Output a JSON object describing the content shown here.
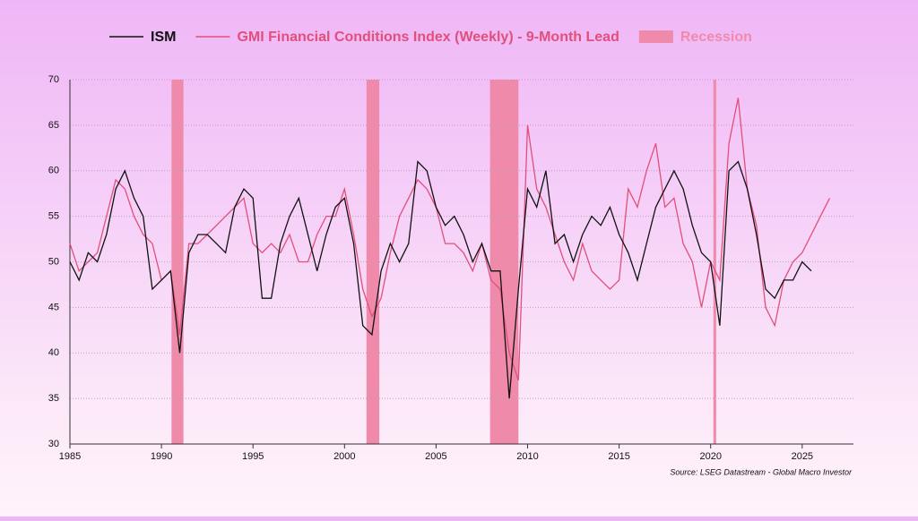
{
  "chart_data": {
    "type": "line",
    "legend_position": "top",
    "x": [
      1985,
      1985.5,
      1986,
      1986.5,
      1987,
      1987.5,
      1988,
      1988.5,
      1989,
      1989.5,
      1990,
      1990.5,
      1991,
      1991.5,
      1992,
      1992.5,
      1993,
      1993.5,
      1994,
      1994.5,
      1995,
      1995.5,
      1996,
      1996.5,
      1997,
      1997.5,
      1998,
      1998.5,
      1999,
      1999.5,
      2000,
      2000.5,
      2001,
      2001.5,
      2002,
      2002.5,
      2003,
      2003.5,
      2004,
      2004.5,
      2005,
      2005.5,
      2006,
      2006.5,
      2007,
      2007.5,
      2008,
      2008.5,
      2009,
      2009.5,
      2010,
      2010.5,
      2011,
      2011.5,
      2012,
      2012.5,
      2013,
      2013.5,
      2014,
      2014.5,
      2015,
      2015.5,
      2016,
      2016.5,
      2017,
      2017.5,
      2018,
      2018.5,
      2019,
      2019.5,
      2020,
      2020.5,
      2021,
      2021.5,
      2022,
      2022.5,
      2023,
      2023.5,
      2024,
      2024.5,
      2025,
      2025.5,
      2026,
      2026.5
    ],
    "series": [
      {
        "name": "ISM",
        "color": "#111111",
        "values": [
          50,
          48,
          51,
          50,
          53,
          58,
          60,
          57,
          55,
          47,
          48,
          49,
          40,
          51,
          53,
          53,
          52,
          51,
          56,
          58,
          57,
          46,
          46,
          52,
          55,
          57,
          53,
          49,
          53,
          56,
          57,
          52,
          43,
          42,
          49,
          52,
          50,
          52,
          61,
          60,
          56,
          54,
          55,
          53,
          50,
          52,
          49,
          49,
          35,
          47,
          58,
          56,
          60,
          52,
          53,
          50,
          53,
          55,
          54,
          56,
          53,
          51,
          48,
          52,
          56,
          58,
          60,
          58,
          54,
          51,
          50,
          43,
          60,
          61,
          58,
          53,
          47,
          46,
          48,
          48,
          50,
          49,
          null,
          null
        ]
      },
      {
        "name": "GMI Financial Conditions Index (Weekly) - 9-Month Lead",
        "color": "#e0507a",
        "values": [
          52,
          49,
          50,
          51,
          55,
          59,
          58,
          55,
          53,
          52,
          48,
          49,
          42,
          52,
          52,
          53,
          54,
          55,
          56,
          57,
          52,
          51,
          52,
          51,
          53,
          50,
          50,
          53,
          55,
          55,
          58,
          53,
          47,
          44,
          46,
          51,
          55,
          57,
          59,
          58,
          56,
          52,
          52,
          51,
          49,
          52,
          48,
          47,
          40,
          37,
          65,
          58,
          56,
          53,
          50,
          48,
          52,
          49,
          48,
          47,
          48,
          58,
          56,
          60,
          63,
          56,
          57,
          52,
          50,
          45,
          50,
          48,
          63,
          68,
          58,
          54,
          45,
          43,
          48,
          50,
          51,
          53,
          55,
          57
        ]
      }
    ],
    "recession": {
      "name": "Recession",
      "color": "#f08aaa",
      "spans": [
        [
          1990.55,
          1991.2
        ],
        [
          2001.2,
          2001.9
        ],
        [
          2007.95,
          2009.5
        ],
        [
          2020.15,
          2020.3
        ]
      ]
    },
    "xlim": [
      1985,
      2027.8
    ],
    "xticks": [
      1985,
      1990,
      1995,
      2000,
      2005,
      2010,
      2015,
      2020,
      2025
    ],
    "ylim": [
      30,
      70
    ],
    "yticks": [
      30,
      35,
      40,
      45,
      50,
      55,
      60,
      65,
      70
    ],
    "grid": true,
    "source": "Source: LSEG Datastream - Global Macro Investor"
  }
}
